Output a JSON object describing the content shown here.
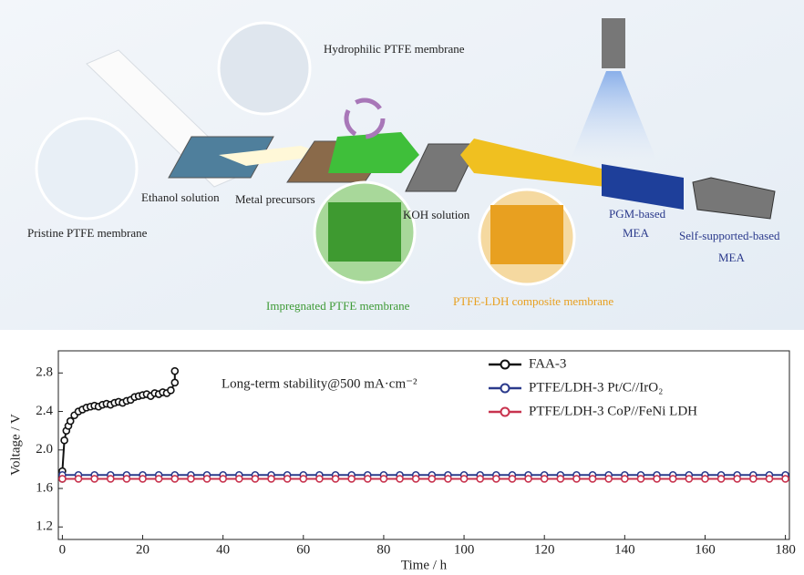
{
  "diagram": {
    "labels": [
      "Hydrophilic PTFE membrane",
      "Ethanol solution",
      "Metal precursors",
      "KOH solution",
      "Pristine PTFE membrane",
      "Impregnated PTFE membrane",
      "PTFE-LDH composite membrane",
      "PGM-based",
      "MEA",
      "Self-supported-based",
      "MEA"
    ]
  },
  "chart_data": {
    "type": "line",
    "annotation": "Long-term stability@500 mA·cm⁻²",
    "x_label": "Time / h",
    "y_label": "Voltage / V",
    "xlim": [
      -1,
      181
    ],
    "ylim": [
      1.07,
      3.03
    ],
    "xticks": [
      0,
      20,
      40,
      60,
      80,
      100,
      120,
      140,
      160,
      180
    ],
    "yticks": [
      1.2,
      1.6,
      {
        "value": 2,
        "label": "2.0"
      },
      2.4,
      2.8
    ],
    "legend": "upper right",
    "series": [
      {
        "name": "FAA-3",
        "color": "#111111",
        "x": [
          0,
          0,
          0.5,
          1,
          1.5,
          2,
          3,
          4,
          5,
          6,
          7,
          8,
          9,
          10,
          11,
          12,
          13,
          14,
          15,
          16,
          17,
          18,
          19,
          20,
          21,
          22,
          23,
          24,
          25,
          26,
          27,
          28,
          28
        ],
        "values": [
          1.7,
          1.78,
          2.1,
          2.2,
          2.25,
          2.3,
          2.36,
          2.4,
          2.42,
          2.44,
          2.45,
          2.46,
          2.45,
          2.47,
          2.48,
          2.47,
          2.49,
          2.5,
          2.49,
          2.51,
          2.52,
          2.55,
          2.56,
          2.57,
          2.58,
          2.56,
          2.59,
          2.58,
          2.6,
          2.59,
          2.62,
          2.7,
          2.82
        ]
      },
      {
        "name": "PTFE/LDH-3 Pt/C//IrO₂",
        "color": "#2b3a8c",
        "x": [
          0,
          4,
          8,
          12,
          16,
          20,
          24,
          28,
          32,
          36,
          40,
          44,
          48,
          52,
          56,
          60,
          64,
          68,
          72,
          76,
          80,
          84,
          88,
          92,
          96,
          100,
          104,
          108,
          112,
          116,
          120,
          124,
          128,
          132,
          136,
          140,
          144,
          148,
          152,
          156,
          160,
          164,
          168,
          172,
          176,
          180
        ],
        "values": [
          1.74,
          1.74,
          1.74,
          1.74,
          1.74,
          1.74,
          1.74,
          1.74,
          1.74,
          1.74,
          1.74,
          1.74,
          1.74,
          1.74,
          1.74,
          1.74,
          1.74,
          1.74,
          1.74,
          1.74,
          1.74,
          1.74,
          1.74,
          1.74,
          1.74,
          1.74,
          1.74,
          1.74,
          1.74,
          1.74,
          1.74,
          1.74,
          1.74,
          1.74,
          1.74,
          1.74,
          1.74,
          1.74,
          1.74,
          1.74,
          1.74,
          1.74,
          1.74,
          1.74,
          1.74,
          1.74
        ]
      },
      {
        "name": "PTFE/LDH-3 CoP//FeNi LDH",
        "color": "#c8334e",
        "x": [
          0,
          4,
          8,
          12,
          16,
          20,
          24,
          28,
          32,
          36,
          40,
          44,
          48,
          52,
          56,
          60,
          64,
          68,
          72,
          76,
          80,
          84,
          88,
          92,
          96,
          100,
          104,
          108,
          112,
          116,
          120,
          124,
          128,
          132,
          136,
          140,
          144,
          148,
          152,
          156,
          160,
          164,
          168,
          172,
          176,
          180
        ],
        "values": [
          1.7,
          1.7,
          1.7,
          1.7,
          1.7,
          1.7,
          1.7,
          1.7,
          1.7,
          1.7,
          1.7,
          1.7,
          1.7,
          1.7,
          1.7,
          1.7,
          1.7,
          1.7,
          1.7,
          1.7,
          1.7,
          1.7,
          1.7,
          1.7,
          1.7,
          1.7,
          1.7,
          1.7,
          1.7,
          1.7,
          1.7,
          1.7,
          1.7,
          1.7,
          1.7,
          1.7,
          1.7,
          1.7,
          1.7,
          1.7,
          1.7,
          1.7,
          1.7,
          1.7,
          1.7,
          1.7
        ]
      }
    ]
  }
}
